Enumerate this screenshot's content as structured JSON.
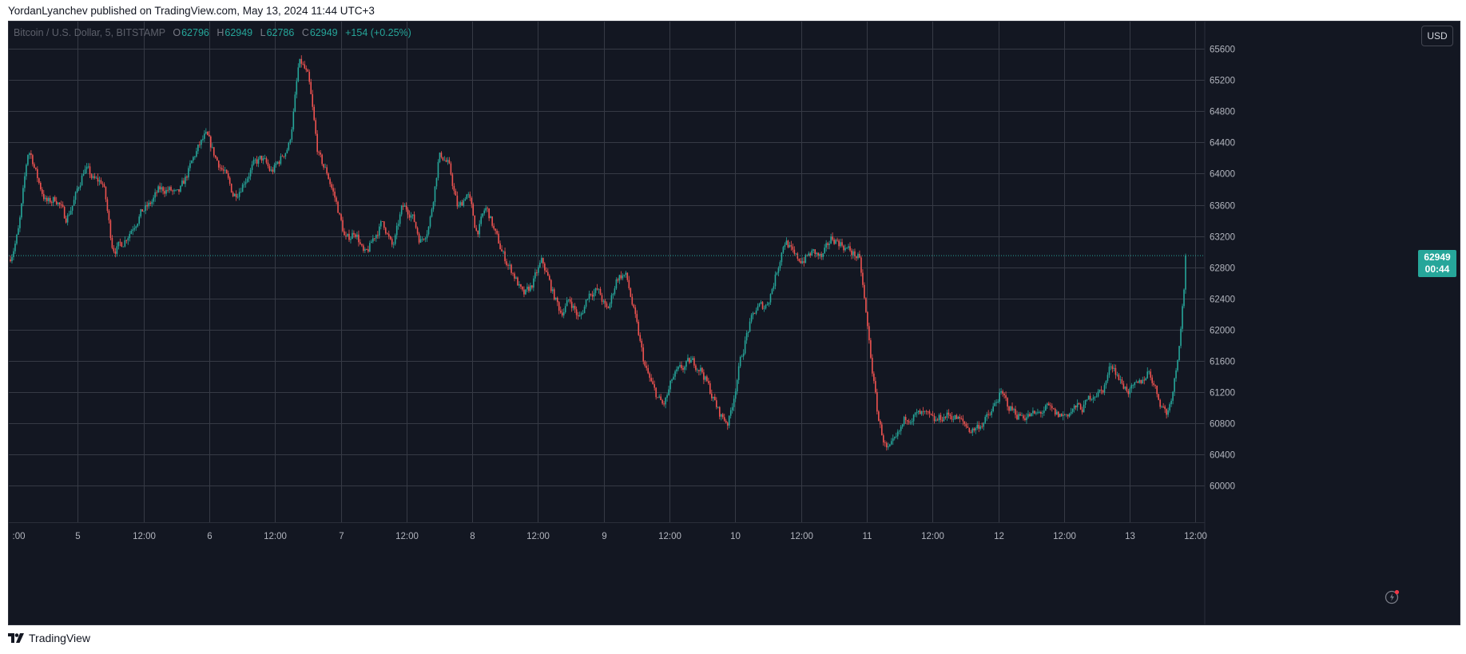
{
  "caption": {
    "text": "YordanLyanchev published on TradingView.com, May 13, 2024 11:44 UTC+3"
  },
  "legend": {
    "title": "Bitcoin / U.S. Dollar, 5, BITSTAMP",
    "open_label": "O",
    "open": "62796",
    "high_label": "H",
    "high": "62949",
    "low_label": "L",
    "low": "62786",
    "close_label": "C",
    "close": "62949",
    "change": "+154 (+0.25%)"
  },
  "currency_button": "USD",
  "last_price": {
    "price": "62949",
    "countdown": "00:44",
    "value": 62949
  },
  "branding": {
    "name": "TradingView"
  },
  "colors": {
    "background": "#131722",
    "grid": "#363a45",
    "up": "#26a69a",
    "down": "#ef5350",
    "axis_text": "#b2b5be"
  },
  "icons": [
    "flash-icon",
    "tradingview-logo"
  ],
  "chart_data": {
    "type": "candlestick",
    "symbol": "Bitcoin / U.S. Dollar",
    "interval": "5",
    "exchange": "BITSTAMP",
    "currency": "USD",
    "y_ticks": [
      60000,
      60400,
      60800,
      61200,
      61600,
      62000,
      62400,
      62800,
      63200,
      63600,
      64000,
      64400,
      64800,
      65200,
      65600
    ],
    "ylim": [
      59530,
      65950
    ],
    "x_labels": [
      ":00",
      "5",
      "12:00",
      "6",
      "12:00",
      "7",
      "12:00",
      "8",
      "12:00",
      "9",
      "12:00",
      "10",
      "12:00",
      "11",
      "12:00",
      "12",
      "12:00",
      "13",
      "12:00"
    ],
    "price_path": [
      [
        0,
        62900
      ],
      [
        1,
        63300
      ],
      [
        2,
        64400
      ],
      [
        3,
        63900
      ],
      [
        4,
        63600
      ],
      [
        5,
        63700
      ],
      [
        6,
        63400
      ],
      [
        7,
        63700
      ],
      [
        8,
        64100
      ],
      [
        9,
        63900
      ],
      [
        10,
        63900
      ],
      [
        11,
        63000
      ],
      [
        12,
        63100
      ],
      [
        13,
        63300
      ],
      [
        14,
        63500
      ],
      [
        15,
        63600
      ],
      [
        16,
        63800
      ],
      [
        17,
        63800
      ],
      [
        18,
        63700
      ],
      [
        19,
        64000
      ],
      [
        20,
        64300
      ],
      [
        21,
        64500
      ],
      [
        22,
        64200
      ],
      [
        23,
        64000
      ],
      [
        24,
        63700
      ],
      [
        25,
        63900
      ],
      [
        26,
        64100
      ],
      [
        27,
        64200
      ],
      [
        28,
        64000
      ],
      [
        29,
        64200
      ],
      [
        30,
        64400
      ],
      [
        31,
        65500
      ],
      [
        32,
        65200
      ],
      [
        33,
        64200
      ],
      [
        34,
        64000
      ],
      [
        35,
        63600
      ],
      [
        36,
        63100
      ],
      [
        37,
        63300
      ],
      [
        38,
        62900
      ],
      [
        39,
        63200
      ],
      [
        40,
        63400
      ],
      [
        41,
        63000
      ],
      [
        42,
        63600
      ],
      [
        43,
        63500
      ],
      [
        44,
        63100
      ],
      [
        45,
        63400
      ],
      [
        46,
        64300
      ],
      [
        47,
        64100
      ],
      [
        48,
        63500
      ],
      [
        49,
        63800
      ],
      [
        50,
        63200
      ],
      [
        51,
        63600
      ],
      [
        52,
        63200
      ],
      [
        53,
        62900
      ],
      [
        54,
        62700
      ],
      [
        55,
        62400
      ],
      [
        56,
        62600
      ],
      [
        57,
        62900
      ],
      [
        58,
        62500
      ],
      [
        59,
        62200
      ],
      [
        60,
        62400
      ],
      [
        61,
        62100
      ],
      [
        62,
        62500
      ],
      [
        63,
        62500
      ],
      [
        64,
        62200
      ],
      [
        65,
        62700
      ],
      [
        66,
        62700
      ],
      [
        67,
        62100
      ],
      [
        68,
        61500
      ],
      [
        69,
        61200
      ],
      [
        70,
        61000
      ],
      [
        71,
        61400
      ],
      [
        72,
        61500
      ],
      [
        73,
        61600
      ],
      [
        74,
        61500
      ],
      [
        75,
        61200
      ],
      [
        76,
        60900
      ],
      [
        77,
        60800
      ],
      [
        78,
        61500
      ],
      [
        79,
        62000
      ],
      [
        80,
        62300
      ],
      [
        81,
        62300
      ],
      [
        82,
        62700
      ],
      [
        83,
        63200
      ],
      [
        84,
        62900
      ],
      [
        85,
        62900
      ],
      [
        86,
        63000
      ],
      [
        87,
        62900
      ],
      [
        88,
        63200
      ],
      [
        89,
        63100
      ],
      [
        90,
        63000
      ],
      [
        91,
        62900
      ],
      [
        92,
        61800
      ],
      [
        93,
        60800
      ],
      [
        94,
        60400
      ],
      [
        95,
        60600
      ],
      [
        96,
        60900
      ],
      [
        97,
        60900
      ],
      [
        98,
        60900
      ],
      [
        99,
        60800
      ],
      [
        100,
        60900
      ],
      [
        101,
        60900
      ],
      [
        102,
        60800
      ],
      [
        103,
        60700
      ],
      [
        104,
        60800
      ],
      [
        105,
        60900
      ],
      [
        106,
        61200
      ],
      [
        107,
        61000
      ],
      [
        108,
        60900
      ],
      [
        109,
        60900
      ],
      [
        110,
        60900
      ],
      [
        111,
        61000
      ],
      [
        112,
        60900
      ],
      [
        113,
        60900
      ],
      [
        114,
        61000
      ],
      [
        115,
        61000
      ],
      [
        116,
        61200
      ],
      [
        117,
        61200
      ],
      [
        118,
        61600
      ],
      [
        119,
        61300
      ],
      [
        120,
        61200
      ],
      [
        121,
        61300
      ],
      [
        122,
        61500
      ],
      [
        123,
        61100
      ],
      [
        124,
        60900
      ],
      [
        125,
        61600
      ],
      [
        126,
        62949
      ]
    ]
  }
}
